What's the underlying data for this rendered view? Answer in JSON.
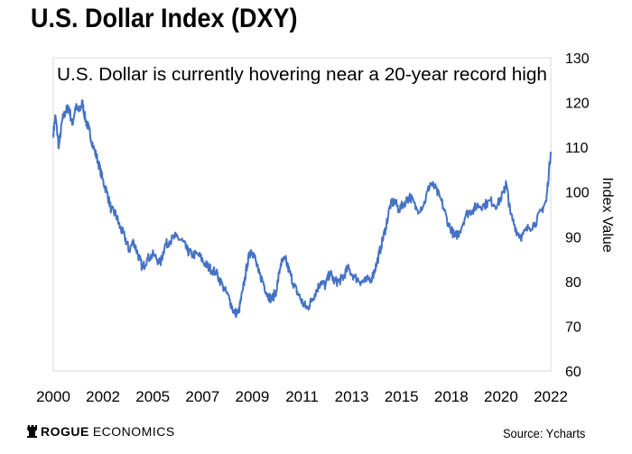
{
  "chart_data": {
    "type": "line",
    "title": "U.S. Dollar Index (DXY)",
    "subtitle": "U.S. Dollar is currently hovering near a 20-year record high",
    "xlabel": "",
    "ylabel": "Index Value",
    "xlim": [
      2000.0,
      2022.3
    ],
    "ylim": [
      60,
      130
    ],
    "x_ticks": [
      "2000",
      "2002",
      "2005",
      "2007",
      "2009",
      "2011",
      "2013",
      "2015",
      "2018",
      "2020",
      "2022"
    ],
    "y_ticks": [
      60,
      70,
      80,
      90,
      100,
      110,
      120,
      130
    ],
    "grid": false,
    "line_color": "#4472C4",
    "series": [
      {
        "x": [
          2000.0,
          2000.1,
          2000.25,
          2000.4,
          2000.55,
          2000.7,
          2000.85,
          2001.0,
          2001.15,
          2001.3,
          2001.45,
          2001.6,
          2001.8,
          2002.0,
          2002.2,
          2002.4,
          2002.6,
          2002.8,
          2003.0,
          2003.2,
          2003.4,
          2003.6,
          2003.8,
          2004.0,
          2004.2,
          2004.5,
          2004.8,
          2005.0,
          2005.2,
          2005.5,
          2005.8,
          2006.0,
          2006.2,
          2006.5,
          2006.8,
          2007.0,
          2007.3,
          2007.6,
          2007.9,
          2008.1,
          2008.3,
          2008.5,
          2008.7,
          2008.85,
          2009.0,
          2009.2,
          2009.4,
          2009.6,
          2009.8,
          2010.0,
          2010.2,
          2010.4,
          2010.6,
          2010.8,
          2011.0,
          2011.2,
          2011.4,
          2011.6,
          2011.8,
          2012.0,
          2012.2,
          2012.4,
          2012.6,
          2012.8,
          2013.0,
          2013.2,
          2013.5,
          2013.8,
          2014.0,
          2014.3,
          2014.5,
          2014.7,
          2014.9,
          2015.1,
          2015.3,
          2015.5,
          2015.8,
          2016.0,
          2016.3,
          2016.6,
          2016.9,
          2017.1,
          2017.4,
          2017.7,
          2018.0,
          2018.2,
          2018.5,
          2018.8,
          2019.0,
          2019.3,
          2019.6,
          2019.9,
          2020.2,
          2020.3,
          2020.5,
          2020.8,
          2021.0,
          2021.3,
          2021.6,
          2021.9,
          2022.1,
          2022.3
        ],
        "y": [
          113,
          117,
          110,
          116,
          118,
          119,
          115,
          119,
          118,
          120,
          116,
          114,
          110,
          107,
          103,
          100,
          96,
          95,
          92,
          90,
          87,
          89,
          86,
          83,
          85,
          86,
          84,
          88,
          89,
          90,
          89,
          87,
          86,
          86,
          84,
          83,
          82,
          79,
          76,
          73,
          73,
          78,
          84,
          87,
          86,
          82,
          80,
          77,
          76,
          78,
          84,
          85,
          82,
          79,
          77,
          75,
          74,
          76,
          78,
          80,
          79,
          82,
          80,
          80,
          81,
          83,
          81,
          80,
          80,
          81,
          84,
          88,
          92,
          97,
          98,
          96,
          98,
          99,
          96,
          97,
          102,
          101,
          98,
          93,
          90,
          91,
          95,
          96,
          97,
          97,
          98,
          97,
          100,
          102,
          95,
          91,
          90,
          92,
          93,
          96,
          98,
          109
        ]
      }
    ]
  },
  "footer": {
    "brand_bold": "ROGUE",
    "brand_rest": "ECONOMICS",
    "source": "Source: Ycharts"
  }
}
